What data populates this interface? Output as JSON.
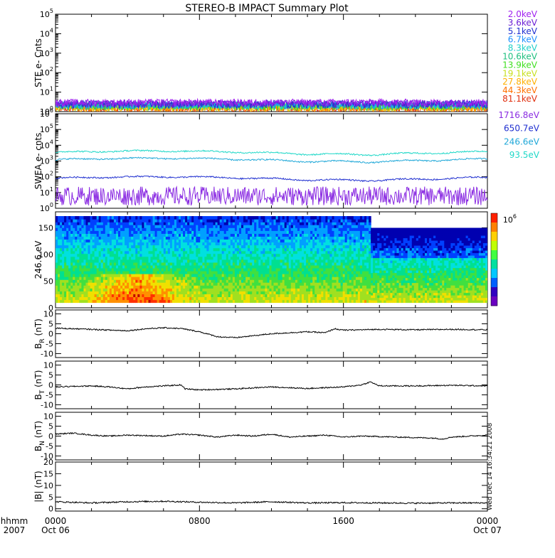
{
  "chart_data": {
    "type": "line",
    "title": "STEREO-B IMPACT Summary Plot",
    "timestamp_note": "Wed Dec 14 16:34:21 2008",
    "x_axis": {
      "row1_label": "hhmm",
      "row2_label": "2007",
      "ticks": [
        {
          "hour": 0,
          "label": "0000",
          "sublabel": "Oct 06"
        },
        {
          "hour": 8,
          "label": "0800",
          "sublabel": ""
        },
        {
          "hour": 16,
          "label": "1600",
          "sublabel": ""
        },
        {
          "hour": 24,
          "label": "0000",
          "sublabel": "Oct 07"
        }
      ],
      "range_hours": [
        0,
        24
      ]
    },
    "panels": [
      {
        "id": "ste",
        "ylabel": "STE e- Cnts",
        "scale": "log",
        "ylim": [
          1,
          100000
        ],
        "ytick_labels": [
          "10^0",
          "10^1",
          "10^2",
          "10^3",
          "10^4",
          "10^5"
        ],
        "series": [
          {
            "name": "2.0keV",
            "color": "#a020f0",
            "level": 2.2
          },
          {
            "name": "3.6keV",
            "color": "#6a1fd4",
            "level": 2.0
          },
          {
            "name": "5.1keV",
            "color": "#2030d0",
            "level": 1.8
          },
          {
            "name": "6.7keV",
            "color": "#1e90ff",
            "level": 1.7
          },
          {
            "name": "8.3keV",
            "color": "#20d0c8",
            "level": 1.6
          },
          {
            "name": "10.6keV",
            "color": "#20c080",
            "level": 1.5
          },
          {
            "name": "13.9keV",
            "color": "#40e020",
            "level": 1.4
          },
          {
            "name": "19.1keV",
            "color": "#c8e020",
            "level": 1.3
          },
          {
            "name": "27.8keV",
            "color": "#ffb000",
            "level": 1.2
          },
          {
            "name": "44.3keV",
            "color": "#ff7000",
            "level": 1.1
          },
          {
            "name": "81.1keV",
            "color": "#e03010",
            "level": 1.05
          }
        ]
      },
      {
        "id": "swea",
        "ylabel": "SWEA e- cnts",
        "scale": "log",
        "ylim": [
          1,
          1000000
        ],
        "ytick_labels": [
          "10^0",
          "10^1",
          "10^2",
          "10^3",
          "10^4",
          "10^5",
          "10^6"
        ],
        "series": [
          {
            "name": "1716.8eV",
            "color": "#8a2be2",
            "level": 6
          },
          {
            "name": "650.7eV",
            "color": "#2030d0",
            "level": 80
          },
          {
            "name": "246.6eV",
            "color": "#20a8d8",
            "level": 1200
          },
          {
            "name": "93.5eV",
            "color": "#20d8c8",
            "level": 3500
          }
        ]
      },
      {
        "id": "spectrogram",
        "ylabel": "246.6 eV",
        "scale": "linear",
        "ylim": [
          0,
          180
        ],
        "ytick_labels": [
          "0",
          "50",
          "100",
          "150"
        ],
        "ytick_values": [
          0,
          50,
          100,
          150
        ],
        "colorbar_label": "10^6"
      },
      {
        "id": "br",
        "ylabel": "B_R (nT)",
        "ylabel_main": "B",
        "ylabel_sub": "R",
        "ylabel_unit": "(nT)",
        "scale": "linear",
        "ylim": [
          -12,
          12
        ],
        "ytick_values": [
          -10,
          -5,
          0,
          5,
          10
        ],
        "ytick_labels": [
          "-10",
          "-5",
          "0",
          "5",
          "10"
        ],
        "profile": [
          [
            0,
            2.8
          ],
          [
            2,
            2.2
          ],
          [
            4,
            1.5
          ],
          [
            5,
            2.5
          ],
          [
            6,
            3.0
          ],
          [
            7,
            2.6
          ],
          [
            8,
            1.0
          ],
          [
            9,
            -1.5
          ],
          [
            10,
            -2.0
          ],
          [
            11,
            -1.0
          ],
          [
            12,
            0.0
          ],
          [
            13,
            0.5
          ],
          [
            14,
            1.0
          ],
          [
            15,
            0.5
          ],
          [
            15.5,
            2.5
          ],
          [
            16,
            1.8
          ],
          [
            18,
            2.2
          ],
          [
            20,
            2.0
          ],
          [
            22,
            2.2
          ],
          [
            24,
            2.0
          ]
        ]
      },
      {
        "id": "bt",
        "ylabel": "B_T (nT)",
        "ylabel_main": "B",
        "ylabel_sub": "T",
        "ylabel_unit": "(nT)",
        "scale": "linear",
        "ylim": [
          -12,
          12
        ],
        "ytick_values": [
          -10,
          -5,
          0,
          5,
          10
        ],
        "ytick_labels": [
          "-10",
          "-5",
          "0",
          "5",
          "10"
        ],
        "profile": [
          [
            0,
            -1.0
          ],
          [
            2,
            -0.5
          ],
          [
            3,
            -1.0
          ],
          [
            4,
            -2.0
          ],
          [
            5,
            -1.0
          ],
          [
            6,
            -0.5
          ],
          [
            7,
            0.0
          ],
          [
            7.2,
            -2.0
          ],
          [
            8,
            -2.5
          ],
          [
            10,
            -2.0
          ],
          [
            12,
            -1.0
          ],
          [
            14,
            -1.8
          ],
          [
            16,
            -1.0
          ],
          [
            17,
            0.0
          ],
          [
            17.5,
            1.5
          ],
          [
            18,
            -0.5
          ],
          [
            20,
            -0.5
          ],
          [
            22,
            -0.2
          ],
          [
            24,
            -0.5
          ]
        ]
      },
      {
        "id": "bn",
        "ylabel": "B_N (nT)",
        "ylabel_main": "B",
        "ylabel_sub": "N",
        "ylabel_unit": "(nT)",
        "scale": "linear",
        "ylim": [
          -12,
          12
        ],
        "ytick_values": [
          -10,
          -5,
          0,
          5,
          10
        ],
        "ytick_labels": [
          "-10",
          "-5",
          "0",
          "5",
          "10"
        ],
        "profile": [
          [
            0,
            1.0
          ],
          [
            1,
            1.5
          ],
          [
            2,
            0.5
          ],
          [
            3,
            0.0
          ],
          [
            4,
            0.5
          ],
          [
            6,
            0.0
          ],
          [
            7,
            1.0
          ],
          [
            8,
            0.5
          ],
          [
            9,
            -0.5
          ],
          [
            10,
            0.5
          ],
          [
            11,
            0.0
          ],
          [
            12,
            1.0
          ],
          [
            13,
            -0.5
          ],
          [
            14,
            0.0
          ],
          [
            15,
            0.5
          ],
          [
            16,
            -0.5
          ],
          [
            17,
            0.0
          ],
          [
            19,
            -0.5
          ],
          [
            21,
            -1.0
          ],
          [
            21.5,
            -1.5
          ],
          [
            22,
            -0.5
          ],
          [
            24,
            0.5
          ]
        ]
      },
      {
        "id": "bmag",
        "ylabel": "|B| (nT)",
        "ylabel_main": "|B|",
        "ylabel_sub": "",
        "ylabel_unit": "(nT)",
        "scale": "linear",
        "ylim": [
          -1,
          20
        ],
        "ytick_values": [
          0,
          5,
          10,
          15,
          20
        ],
        "ytick_labels": [
          "0",
          "5",
          "10",
          "15",
          "20"
        ],
        "profile": [
          [
            0,
            3.0
          ],
          [
            2,
            2.5
          ],
          [
            4,
            3.0
          ],
          [
            6,
            3.2
          ],
          [
            8,
            2.8
          ],
          [
            10,
            2.5
          ],
          [
            12,
            3.0
          ],
          [
            14,
            2.5
          ],
          [
            16,
            2.6
          ],
          [
            18,
            2.5
          ],
          [
            20,
            2.4
          ],
          [
            22,
            2.5
          ],
          [
            24,
            2.5
          ]
        ]
      }
    ],
    "colorbar_colors": [
      "#ff2000",
      "#ff8000",
      "#ffd000",
      "#c0ff00",
      "#40ff40",
      "#00e0a0",
      "#00c8ff",
      "#0060ff",
      "#3000c0",
      "#6a00c0"
    ]
  }
}
